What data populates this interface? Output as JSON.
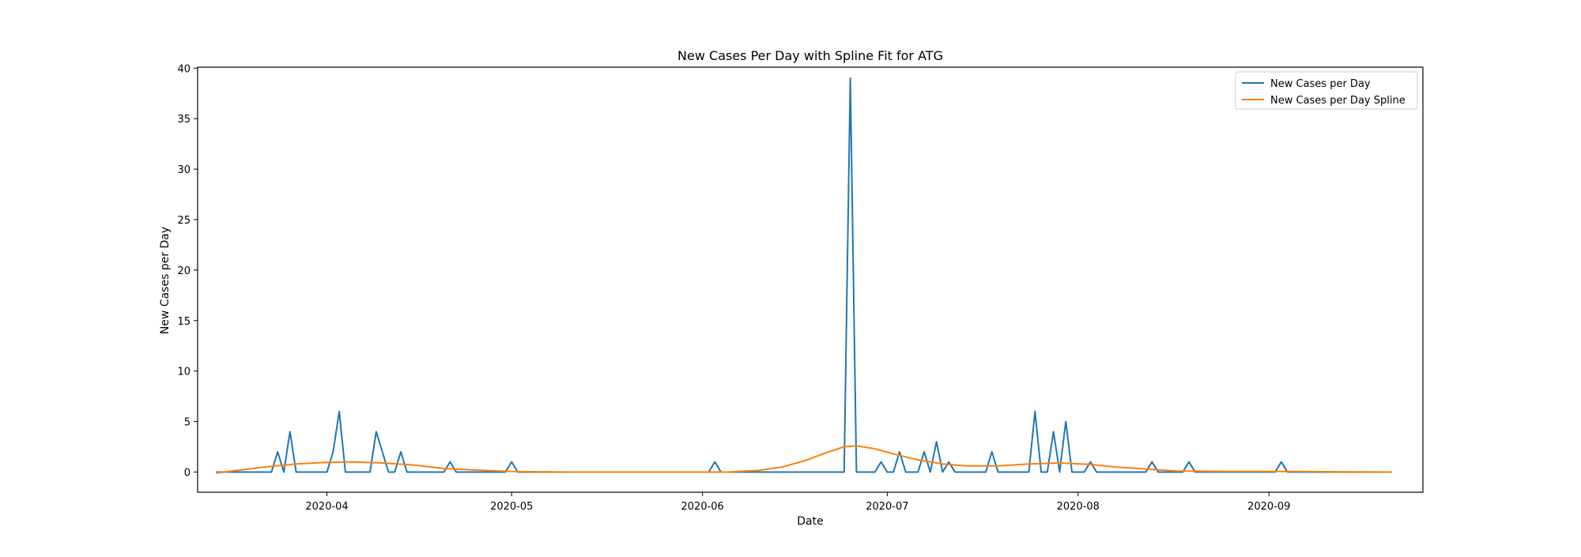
{
  "chart_data": {
    "type": "line",
    "title": "New Cases Per Day with Spline Fit for ATG",
    "xlabel": "Date",
    "ylabel": "New Cases per Day",
    "x_type": "date",
    "xlim": [
      "2020-03-11",
      "2020-09-26"
    ],
    "ylim": [
      -2,
      40.1
    ],
    "x_ticks": [
      "2020-04-01",
      "2020-05-01",
      "2020-06-01",
      "2020-07-01",
      "2020-08-01",
      "2020-09-01"
    ],
    "x_tick_labels": [
      "2020-04",
      "2020-05",
      "2020-06",
      "2020-07",
      "2020-08",
      "2020-09"
    ],
    "y_ticks": [
      0,
      5,
      10,
      15,
      20,
      25,
      30,
      35,
      40
    ],
    "y_tick_labels": [
      "0",
      "5",
      "10",
      "15",
      "20",
      "25",
      "30",
      "35",
      "40"
    ],
    "grid": false,
    "legend_position": "top-right",
    "series": [
      {
        "name": "New Cases per Day",
        "color": "#1f77b4",
        "points": [
          [
            "2020-03-14",
            0
          ],
          [
            "2020-03-23",
            0
          ],
          [
            "2020-03-24",
            2
          ],
          [
            "2020-03-25",
            0
          ],
          [
            "2020-03-26",
            4
          ],
          [
            "2020-03-27",
            0
          ],
          [
            "2020-04-01",
            0
          ],
          [
            "2020-04-02",
            2
          ],
          [
            "2020-04-03",
            6
          ],
          [
            "2020-04-04",
            0
          ],
          [
            "2020-04-08",
            0
          ],
          [
            "2020-04-09",
            4
          ],
          [
            "2020-04-10",
            2
          ],
          [
            "2020-04-11",
            0
          ],
          [
            "2020-04-12",
            0
          ],
          [
            "2020-04-13",
            2
          ],
          [
            "2020-04-14",
            0
          ],
          [
            "2020-04-20",
            0
          ],
          [
            "2020-04-21",
            1
          ],
          [
            "2020-04-22",
            0
          ],
          [
            "2020-04-30",
            0
          ],
          [
            "2020-05-01",
            1
          ],
          [
            "2020-05-02",
            0
          ],
          [
            "2020-06-02",
            0
          ],
          [
            "2020-06-03",
            1
          ],
          [
            "2020-06-04",
            0
          ],
          [
            "2020-06-24",
            0
          ],
          [
            "2020-06-25",
            39
          ],
          [
            "2020-06-26",
            0
          ],
          [
            "2020-06-29",
            0
          ],
          [
            "2020-06-30",
            1
          ],
          [
            "2020-07-01",
            0
          ],
          [
            "2020-07-02",
            0
          ],
          [
            "2020-07-03",
            2
          ],
          [
            "2020-07-04",
            0
          ],
          [
            "2020-07-06",
            0
          ],
          [
            "2020-07-07",
            2
          ],
          [
            "2020-07-08",
            0
          ],
          [
            "2020-07-09",
            3
          ],
          [
            "2020-07-10",
            0
          ],
          [
            "2020-07-11",
            1
          ],
          [
            "2020-07-12",
            0
          ],
          [
            "2020-07-17",
            0
          ],
          [
            "2020-07-18",
            2
          ],
          [
            "2020-07-19",
            0
          ],
          [
            "2020-07-24",
            0
          ],
          [
            "2020-07-25",
            6
          ],
          [
            "2020-07-26",
            0
          ],
          [
            "2020-07-27",
            0
          ],
          [
            "2020-07-28",
            4
          ],
          [
            "2020-07-29",
            0
          ],
          [
            "2020-07-30",
            5
          ],
          [
            "2020-07-31",
            0
          ],
          [
            "2020-08-02",
            0
          ],
          [
            "2020-08-03",
            1
          ],
          [
            "2020-08-04",
            0
          ],
          [
            "2020-08-12",
            0
          ],
          [
            "2020-08-13",
            1
          ],
          [
            "2020-08-14",
            0
          ],
          [
            "2020-08-18",
            0
          ],
          [
            "2020-08-19",
            1
          ],
          [
            "2020-08-20",
            0
          ],
          [
            "2020-09-02",
            0
          ],
          [
            "2020-09-03",
            1
          ],
          [
            "2020-09-04",
            0
          ],
          [
            "2020-09-21",
            0
          ]
        ]
      },
      {
        "name": "New Cases per Day Spline",
        "color": "#ff7f0e",
        "points": [
          [
            "2020-03-14",
            -0.1
          ],
          [
            "2020-03-18",
            0.2
          ],
          [
            "2020-03-22",
            0.5
          ],
          [
            "2020-03-27",
            0.8
          ],
          [
            "2020-04-01",
            0.95
          ],
          [
            "2020-04-05",
            1.0
          ],
          [
            "2020-04-10",
            0.9
          ],
          [
            "2020-04-15",
            0.7
          ],
          [
            "2020-04-20",
            0.35
          ],
          [
            "2020-04-25",
            0.2
          ],
          [
            "2020-05-01",
            0.05
          ],
          [
            "2020-05-10",
            0.0
          ],
          [
            "2020-05-25",
            0.0
          ],
          [
            "2020-06-05",
            0.0
          ],
          [
            "2020-06-10",
            0.15
          ],
          [
            "2020-06-14",
            0.5
          ],
          [
            "2020-06-18",
            1.2
          ],
          [
            "2020-06-21",
            1.9
          ],
          [
            "2020-06-24",
            2.5
          ],
          [
            "2020-06-26",
            2.6
          ],
          [
            "2020-06-29",
            2.3
          ],
          [
            "2020-07-02",
            1.8
          ],
          [
            "2020-07-06",
            1.2
          ],
          [
            "2020-07-10",
            0.8
          ],
          [
            "2020-07-14",
            0.6
          ],
          [
            "2020-07-19",
            0.6
          ],
          [
            "2020-07-24",
            0.8
          ],
          [
            "2020-07-29",
            0.9
          ],
          [
            "2020-08-03",
            0.75
          ],
          [
            "2020-08-07",
            0.5
          ],
          [
            "2020-08-12",
            0.3
          ],
          [
            "2020-08-17",
            0.1
          ],
          [
            "2020-08-25",
            0.05
          ],
          [
            "2020-09-05",
            0.05
          ],
          [
            "2020-09-15",
            0.02
          ],
          [
            "2020-09-21",
            0.0
          ]
        ]
      }
    ]
  }
}
